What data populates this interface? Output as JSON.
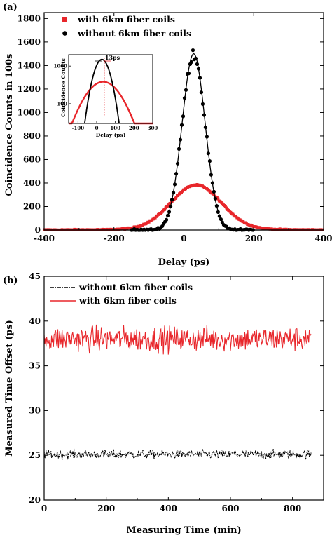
{
  "chart_data": [
    {
      "panel_label": "(a)",
      "type": "scatter",
      "xlabel": "Delay (ps)",
      "ylabel": "Coincidence Counts in 100s",
      "xlim": [
        -400,
        400
      ],
      "ylim": [
        0,
        1850
      ],
      "xticks": [
        -400,
        -200,
        0,
        200,
        400
      ],
      "yticks": [
        0,
        200,
        400,
        600,
        800,
        1000,
        1200,
        1400,
        1600,
        1800
      ],
      "legend_placement": "top-left",
      "grid": false,
      "series": [
        {
          "name": "with 6km fiber coils",
          "color": "#e8262b",
          "marker": "square",
          "peak_center": 35,
          "peak_height": 370,
          "sigma": 72
        },
        {
          "name": "without 6km fiber coils",
          "color": "#000000",
          "marker": "circle",
          "line": "fit",
          "peak_center": 28,
          "peak_height": 1500,
          "sigma": 33
        }
      ],
      "inset": {
        "type": "line",
        "xlabel": "Delay (ps)",
        "ylabel": "Coincidence Counts",
        "xlim": [
          -150,
          300
        ],
        "ylog": true,
        "xticks": [
          -100,
          0,
          100,
          200,
          300
        ],
        "yticks": [
          "100",
          "1000"
        ],
        "annotation": "13ps"
      }
    },
    {
      "panel_label": "(b)",
      "type": "line",
      "xlabel": "Measuring Time (min)",
      "ylabel": "Measured Time Offset (ps)",
      "xlim": [
        0,
        900
      ],
      "ylim": [
        20,
        45
      ],
      "xticks": [
        0,
        200,
        400,
        600,
        800
      ],
      "yticks": [
        20,
        25,
        30,
        35,
        40,
        45
      ],
      "legend_placement": "top-left",
      "grid": false,
      "series": [
        {
          "name": "without 6km fiber coils",
          "color": "#000000",
          "style": "dash-dot",
          "x_range": [
            0,
            860
          ],
          "mean": 25.1,
          "noise": 0.35
        },
        {
          "name": "with 6km fiber coils",
          "color": "#e8262b",
          "style": "solid",
          "x_range": [
            0,
            860
          ],
          "mean": 38.0,
          "noise": 1.0
        }
      ]
    }
  ]
}
